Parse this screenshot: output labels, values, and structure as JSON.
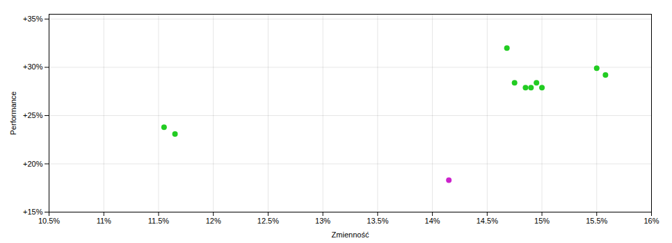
{
  "chart_data": {
    "type": "scatter",
    "xlabel": "Zmienność",
    "ylabel": "Performance",
    "series": [
      {
        "color": "#22cc22",
        "x": [
          0.1155,
          0.1165,
          0.1468,
          0.1475,
          0.1485,
          0.149,
          0.1495,
          0.15,
          0.155,
          0.1558
        ],
        "values": [
          0.238,
          0.231,
          0.32,
          0.284,
          0.279,
          0.279,
          0.284,
          0.279,
          0.299,
          0.292
        ]
      },
      {
        "color": "#cc22cc",
        "x": [
          0.1415
        ],
        "values": [
          0.183
        ]
      }
    ],
    "xlim": [
      0.105,
      0.16
    ],
    "ylim": [
      0.15,
      0.355
    ],
    "xticks": [
      {
        "value": 0.105,
        "label": "10.5%"
      },
      {
        "value": 0.11,
        "label": "11%"
      },
      {
        "value": 0.115,
        "label": "11.5%"
      },
      {
        "value": 0.12,
        "label": "12%"
      },
      {
        "value": 0.125,
        "label": "12.5%"
      },
      {
        "value": 0.13,
        "label": "13%"
      },
      {
        "value": 0.135,
        "label": "13.5%"
      },
      {
        "value": 0.14,
        "label": "14%"
      },
      {
        "value": 0.145,
        "label": "14.5%"
      },
      {
        "value": 0.15,
        "label": "15%"
      },
      {
        "value": 0.155,
        "label": "15.5%"
      },
      {
        "value": 0.16,
        "label": "16%"
      }
    ],
    "yticks": [
      {
        "value": 0.15,
        "label": "+15%"
      },
      {
        "value": 0.2,
        "label": "+20%"
      },
      {
        "value": 0.25,
        "label": "+25%"
      },
      {
        "value": 0.3,
        "label": "+30%"
      },
      {
        "value": 0.35,
        "label": "+35%"
      }
    ],
    "grid": true
  }
}
